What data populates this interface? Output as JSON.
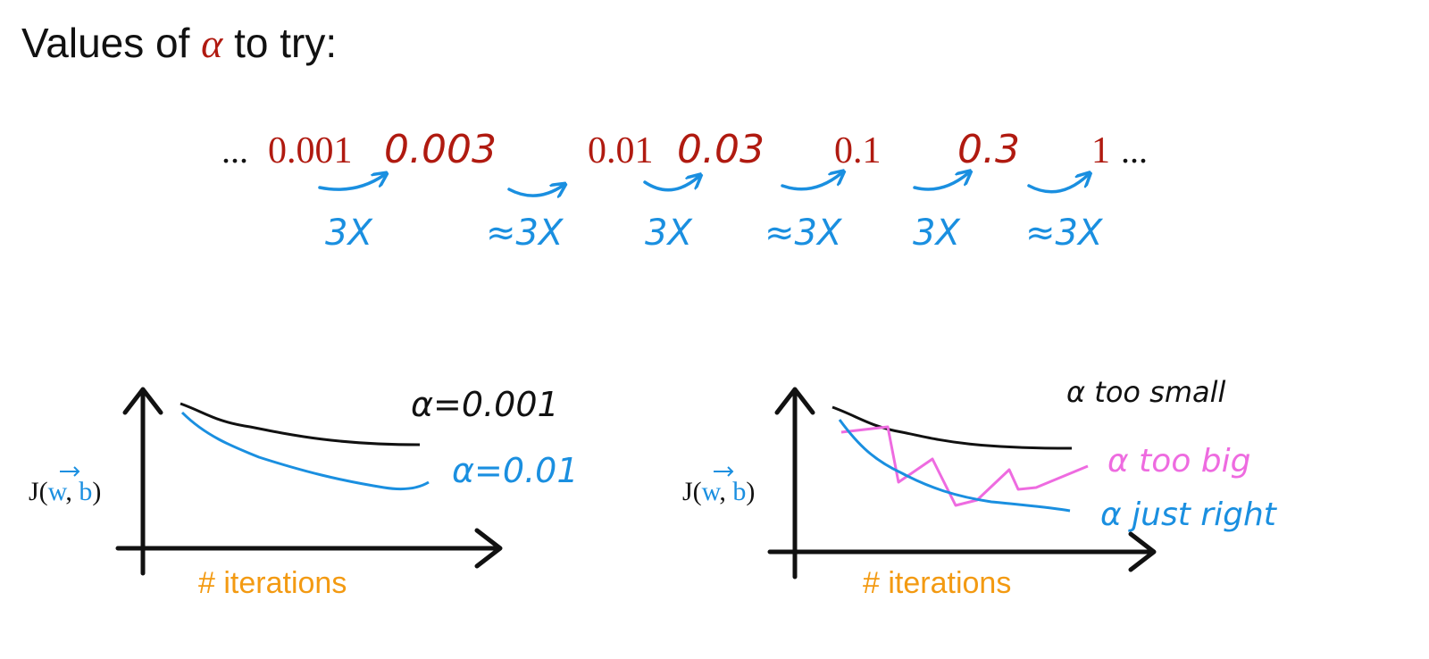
{
  "title": {
    "prefix": "Values of ",
    "symbol": "α",
    "suffix": " to try:"
  },
  "sequence": {
    "leading_ellipsis": "...",
    "trailing_ellipsis": "...",
    "values": [
      "0.001",
      "0.003",
      "0.01",
      "0.03",
      "0.1",
      "0.3",
      "1"
    ],
    "multipliers": [
      "3X",
      "≈3X",
      "3X",
      "≈3X",
      "3X",
      "≈3X"
    ]
  },
  "left_plot": {
    "ylabel": {
      "prefix": "J(",
      "w": "w",
      "comma": ", ",
      "b": "b",
      "suffix": ")"
    },
    "xlabel": "# iterations",
    "curve_labels": [
      "α=0.001",
      "α=0.01"
    ]
  },
  "right_plot": {
    "ylabel": {
      "prefix": "J(",
      "w": "w",
      "comma": ", ",
      "b": "b",
      "suffix": ")"
    },
    "xlabel": "# iterations",
    "curve_labels": [
      "α too small",
      "α too big",
      "α just right"
    ]
  },
  "colors": {
    "text": "#111111",
    "alpha_red": "#b01a10",
    "blue": "#1a8fe0",
    "orange": "#f39a12",
    "pink": "#ee6be0",
    "black": "#111111"
  }
}
